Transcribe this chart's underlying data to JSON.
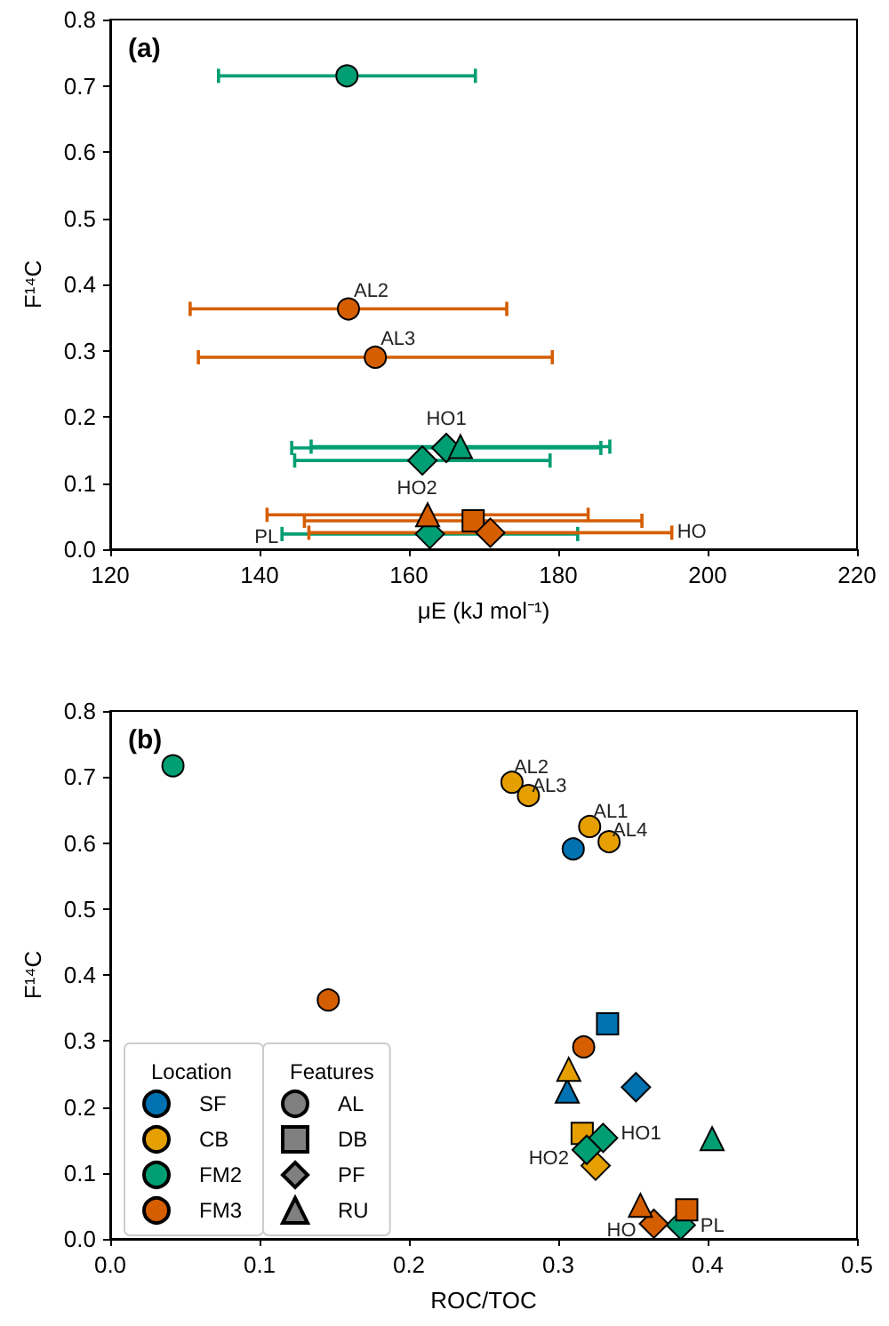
{
  "chart_data": [
    {
      "type": "scatter",
      "title": "(a)",
      "xlabel": "μE (kJ mol⁻¹)",
      "ylabel": "F¹⁴C",
      "xlim": [
        120,
        220
      ],
      "xticks": [
        120,
        140,
        160,
        180,
        200,
        220
      ],
      "ylim": [
        0,
        0.8
      ],
      "yticks": [
        {
          "value": 0,
          "label": "0.0"
        },
        0.1,
        0.2,
        0.3,
        0.4,
        0.5,
        0.6,
        0.7,
        0.8
      ],
      "grid": false,
      "series": [
        {
          "color": "#009e73",
          "marker": "circle",
          "x": [
            151.7
          ],
          "values": [
            0.715
          ],
          "xerrors": [
            17.2
          ]
        },
        {
          "color": "#d55e00",
          "marker": "circle",
          "x": [
            151.9,
            155.5
          ],
          "values": [
            0.363,
            0.29
          ],
          "xerrors": [
            21.2,
            23.7
          ]
        },
        {
          "color": "#009e73",
          "marker": "diamond",
          "x": [
            165.0,
            161.8,
            162.8
          ],
          "values": [
            0.153,
            0.134,
            0.023
          ],
          "xerrors": [
            20.7,
            17.1,
            19.8
          ]
        },
        {
          "color": "#009e73",
          "marker": "triangle",
          "x": [
            166.9
          ],
          "values": [
            0.155
          ],
          "xerrors": [
            20.0
          ]
        },
        {
          "color": "#d55e00",
          "marker": "triangle",
          "x": [
            162.5
          ],
          "values": [
            0.052
          ],
          "xerrors": [
            21.5
          ]
        },
        {
          "color": "#d55e00",
          "marker": "square",
          "x": [
            168.6
          ],
          "values": [
            0.043
          ],
          "xerrors": [
            22.6
          ]
        },
        {
          "color": "#d55e00",
          "marker": "diamond",
          "x": [
            170.9
          ],
          "values": [
            0.025
          ],
          "xerrors": [
            24.3
          ]
        }
      ],
      "annotations": [
        {
          "text": "AL2",
          "x": 151.9,
          "y": 0.363
        },
        {
          "text": "AL3",
          "x": 155.5,
          "y": 0.29
        },
        {
          "text": "HO1",
          "x": 165.0,
          "y": 0.153
        },
        {
          "text": "HO2",
          "x": 161.8,
          "y": 0.134
        },
        {
          "text": "PL",
          "x": 143.0,
          "y": 0.023
        },
        {
          "text": "HO",
          "x": 195.2,
          "y": 0.025
        }
      ]
    },
    {
      "type": "scatter",
      "title": "(b)",
      "xlabel": "ROC/TOC",
      "ylabel": "F¹⁴C",
      "xlim": [
        0,
        0.5
      ],
      "xticks": [
        {
          "value": 0,
          "label": "0.0"
        },
        0.1,
        0.2,
        0.3,
        0.4,
        0.5
      ],
      "ylim": [
        0,
        0.8
      ],
      "yticks": [
        {
          "value": 0,
          "label": "0.0"
        },
        0.1,
        0.2,
        0.3,
        0.4,
        0.5,
        0.6,
        0.7,
        0.8
      ],
      "grid": false,
      "legend": "bottom left",
      "legend_title": [
        "Location",
        "Features"
      ],
      "series": [
        {
          "color": "#0072b2",
          "marker": "circle",
          "x": [
            0.31
          ],
          "values": [
            0.591
          ]
        },
        {
          "color": "#0072b2",
          "marker": "square",
          "x": [
            0.333
          ],
          "values": [
            0.326
          ]
        },
        {
          "color": "#0072b2",
          "marker": "diamond",
          "x": [
            0.352
          ],
          "values": [
            0.23
          ]
        },
        {
          "color": "#0072b2",
          "marker": "triangle",
          "x": [
            0.306
          ],
          "values": [
            0.224
          ]
        },
        {
          "color": "#e69f00",
          "marker": "circle",
          "x": [
            0.269,
            0.28,
            0.321,
            0.334
          ],
          "values": [
            0.692,
            0.672,
            0.625,
            0.602
          ]
        },
        {
          "color": "#e69f00",
          "marker": "square",
          "x": [
            0.316
          ],
          "values": [
            0.16
          ]
        },
        {
          "color": "#e69f00",
          "marker": "diamond",
          "x": [
            0.325
          ],
          "values": [
            0.111
          ]
        },
        {
          "color": "#e69f00",
          "marker": "triangle",
          "x": [
            0.307
          ],
          "values": [
            0.257
          ]
        },
        {
          "color": "#009e73",
          "marker": "circle",
          "x": [
            0.042
          ],
          "values": [
            0.717
          ]
        },
        {
          "color": "#009e73",
          "marker": "diamond",
          "x": [
            0.33,
            0.319,
            0.382
          ],
          "values": [
            0.153,
            0.135,
            0.021
          ]
        },
        {
          "color": "#009e73",
          "marker": "triangle",
          "x": [
            0.403
          ],
          "values": [
            0.152
          ]
        },
        {
          "color": "#d55e00",
          "marker": "circle",
          "x": [
            0.146,
            0.317
          ],
          "values": [
            0.362,
            0.291
          ]
        },
        {
          "color": "#d55e00",
          "marker": "square",
          "x": [
            0.386
          ],
          "values": [
            0.044
          ]
        },
        {
          "color": "#d55e00",
          "marker": "diamond",
          "x": [
            0.364
          ],
          "values": [
            0.023
          ]
        },
        {
          "color": "#d55e00",
          "marker": "triangle",
          "x": [
            0.355
          ],
          "values": [
            0.051
          ]
        },
        {
          "name": "SF",
          "color": "#0072b2",
          "marker": "circle"
        },
        {
          "name": "CB",
          "color": "#e69f00",
          "marker": "circle"
        },
        {
          "name": "FM2",
          "color": "#009e73",
          "marker": "circle"
        },
        {
          "name": "FM3",
          "color": "#d55e00",
          "marker": "circle"
        },
        {
          "name": "AL",
          "color": "#808080",
          "marker": "circle"
        },
        {
          "name": "DB",
          "color": "#808080",
          "marker": "square"
        },
        {
          "name": "PF",
          "color": "#808080",
          "marker": "diamond"
        },
        {
          "name": "RU",
          "color": "#808080",
          "marker": "triangle"
        }
      ],
      "annotations": [
        {
          "text": "AL2",
          "x": 0.269,
          "y": 0.692
        },
        {
          "text": "AL3",
          "x": 0.28,
          "y": 0.672
        },
        {
          "text": "AL1",
          "x": 0.321,
          "y": 0.625
        },
        {
          "text": "AL4",
          "x": 0.334,
          "y": 0.602
        },
        {
          "text": "HO1",
          "x": 0.33,
          "y": 0.153
        },
        {
          "text": "HO2",
          "x": 0.319,
          "y": 0.135
        },
        {
          "text": "HO",
          "x": 0.364,
          "y": 0.023
        },
        {
          "text": "PL",
          "x": 0.382,
          "y": 0.021
        }
      ]
    }
  ]
}
